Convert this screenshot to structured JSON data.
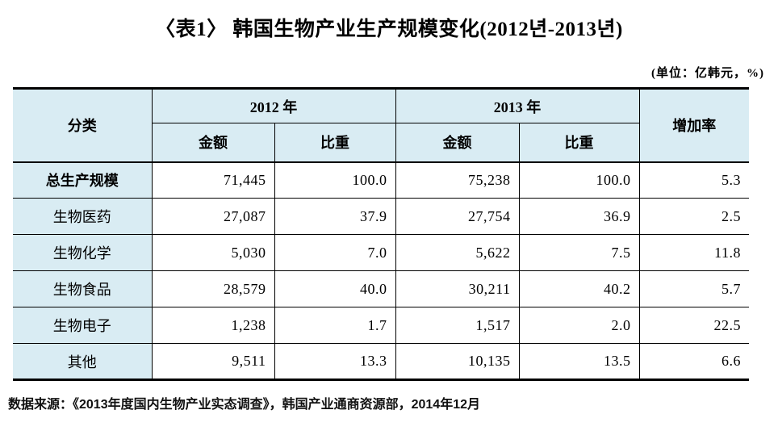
{
  "title": "〈表1〉 韩国生物产业生产规模变化(2012년-2013년)",
  "unit_note": "(单位：亿韩元，%)",
  "colors": {
    "header_bg": "#d9ecf3",
    "border": "#000000",
    "text": "#000000"
  },
  "table": {
    "header": {
      "category": "分类",
      "year_2012": "2012 年",
      "year_2013": "2013 年",
      "amount": "金额",
      "share": "比重",
      "growth_rate": "增加率"
    },
    "rows": [
      {
        "category": "总生产规模",
        "values": [
          "71,445",
          "100.0",
          "75,238",
          "100.0",
          "5.3"
        ]
      },
      {
        "category": "生物医药",
        "values": [
          "27,087",
          "37.9",
          "27,754",
          "36.9",
          "2.5"
        ]
      },
      {
        "category": "生物化学",
        "values": [
          "5,030",
          "7.0",
          "5,622",
          "7.5",
          "11.8"
        ]
      },
      {
        "category": "生物食品",
        "values": [
          "28,579",
          "40.0",
          "30,211",
          "40.2",
          "5.7"
        ]
      },
      {
        "category": "生物电子",
        "values": [
          "1,238",
          "1.7",
          "1,517",
          "2.0",
          "22.5"
        ]
      },
      {
        "category": "其他",
        "values": [
          "9,511",
          "13.3",
          "10,135",
          "13.5",
          "6.6"
        ]
      }
    ]
  },
  "source": "数据来源：《2013年度国内生物产业实态调查》，韩国产业通商资源部，2014年12月"
}
